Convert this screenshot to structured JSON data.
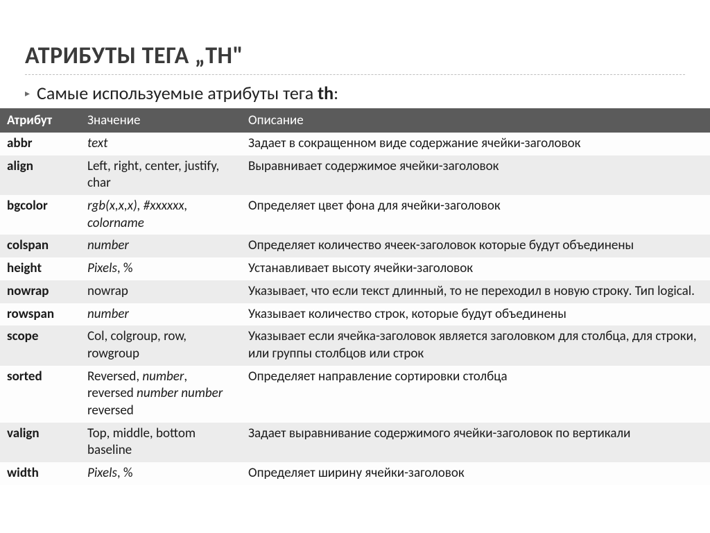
{
  "title_plain": "АТРИБУТЫ ТЕГА „",
  "title_tag": "TH",
  "title_close": "\"",
  "subtitle_prefix": "Самые используемые атрибуты тега ",
  "subtitle_tag": "th",
  "subtitle_suffix": ":",
  "columns": [
    "Атрибут",
    "Значение",
    "Описание"
  ],
  "rows": [
    {
      "attr": "abbr",
      "val_html": "<span class='ital'>text</span>",
      "desc": "Задает в сокращенном виде содержание ячейки-заголовок"
    },
    {
      "attr": "align",
      "val_html": "Left, right, center, justify, char",
      "desc": "Выравнивает содержимое ячейки-заголовок"
    },
    {
      "attr": "bgcolor",
      "val_html": "<span class='ital'>rgb(x,x,x), #xxxxxx, colorname</span>",
      "desc": "Определяет цвет фона для ячейки-заголовок"
    },
    {
      "attr": "colspan",
      "val_html": "<span class='ital'>number</span>",
      "desc": "Определяет количество ячеек-заголовок которые будут объединены"
    },
    {
      "attr": "height",
      "val_html": "<span class='ital'>Pixels</span>, %",
      "desc": "Устанавливает высоту ячейки-заголовок"
    },
    {
      "attr": "nowrap",
      "val_html": "nowrap",
      "desc": "Указывает, что если текст длинный, то не переходил в новую строку. Тип logical."
    },
    {
      "attr": "rowspan",
      "val_html": "<span class='ital'>number</span>",
      "desc": "Указывает количество строк, которые будут объединены"
    },
    {
      "attr": "scope",
      "val_html": "Col, colgroup, row, rowgroup",
      "desc": "Указывает если ячейка-заголовок является заголовком для столбца, для строки, или группы столбцов или строк"
    },
    {
      "attr": "sorted",
      "val_html": "Reversed, <span class='ital'>number</span>, reversed <span class='ital'>number</span> <span class='ital'>number</span> reversed",
      "desc": "Определяет направление сортировки столбца"
    },
    {
      "attr": "valign",
      "val_html": "Top, middle, bottom baseline",
      "desc": "Задает выравнивание содержимого ячейки-заголовок по вертикали"
    },
    {
      "attr": "width",
      "val_html": "<span class='ital'>Pixels</span>, %",
      "desc": "Определяет ширину ячейки-заголовок"
    }
  ]
}
